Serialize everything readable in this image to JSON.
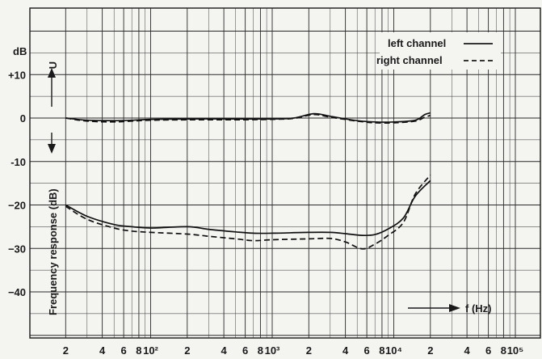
{
  "chart_data": {
    "type": "line",
    "x_scale": "log",
    "xlim": [
      10,
      100000
    ],
    "ylim": [
      -50,
      20
    ],
    "grid": true,
    "legend_placement": "top-right",
    "ylabel": "Frequency response (dB)",
    "y_unit": "dB",
    "x_arrow_label": "f (Hz)",
    "y_arrow_label": "U",
    "y_ticks": [
      {
        "v": 10,
        "t": "+10"
      },
      {
        "v": 0,
        "t": "0"
      },
      {
        "v": -10,
        "t": "-10"
      },
      {
        "v": -20,
        "t": "−20"
      },
      {
        "v": -30,
        "t": "−30"
      },
      {
        "v": -40,
        "t": "−40"
      }
    ],
    "x_ticks": [
      {
        "v": 20,
        "t": "2"
      },
      {
        "v": 40,
        "t": "4"
      },
      {
        "v": 60,
        "t": "6"
      },
      {
        "v": 80,
        "t": "8"
      },
      {
        "v": 100,
        "t": "10²"
      },
      {
        "v": 200,
        "t": "2"
      },
      {
        "v": 400,
        "t": "4"
      },
      {
        "v": 600,
        "t": "6"
      },
      {
        "v": 800,
        "t": "8"
      },
      {
        "v": 1000,
        "t": "10³"
      },
      {
        "v": 2000,
        "t": "2"
      },
      {
        "v": 4000,
        "t": "4"
      },
      {
        "v": 6000,
        "t": "6"
      },
      {
        "v": 8000,
        "t": "8"
      },
      {
        "v": 10000,
        "t": "10⁴"
      },
      {
        "v": 20000,
        "t": "2"
      },
      {
        "v": 40000,
        "t": "4"
      },
      {
        "v": 60000,
        "t": "6"
      },
      {
        "v": 80000,
        "t": "8"
      },
      {
        "v": 100000,
        "t": "10⁵"
      }
    ],
    "series": [
      {
        "name": "left channel",
        "style": "solid",
        "x": [
          20,
          30,
          50,
          70,
          100,
          200,
          500,
          1000,
          1500,
          2200,
          3000,
          5000,
          7000,
          10000,
          15000,
          18000,
          20000
        ],
        "y": [
          0,
          -0.5,
          -0.6,
          -0.5,
          -0.3,
          -0.2,
          -0.2,
          -0.2,
          0,
          1.0,
          0.4,
          -0.6,
          -0.9,
          -0.9,
          -0.5,
          0.8,
          1.2
        ]
      },
      {
        "name": "right channel",
        "style": "dashed",
        "x": [
          20,
          30,
          50,
          70,
          100,
          200,
          500,
          1000,
          1500,
          2200,
          3000,
          5000,
          7000,
          10000,
          15000,
          18000,
          20000
        ],
        "y": [
          0,
          -0.7,
          -0.9,
          -0.7,
          -0.5,
          -0.4,
          -0.4,
          -0.3,
          -0.1,
          0.8,
          0.2,
          -0.7,
          -1.1,
          -1.1,
          -0.7,
          0.2,
          0.6
        ]
      },
      {
        "name": "left channel",
        "style": "solid",
        "x": [
          20,
          30,
          50,
          70,
          100,
          200,
          300,
          500,
          700,
          1000,
          2000,
          3000,
          4000,
          5500,
          7000,
          9000,
          12000,
          15000,
          20000
        ],
        "y": [
          -20,
          -22.6,
          -24.5,
          -25,
          -25.3,
          -25,
          -25.6,
          -26.2,
          -26.5,
          -26.5,
          -26.3,
          -26.3,
          -26.6,
          -27,
          -26.8,
          -25.5,
          -23,
          -18,
          -14.4
        ]
      },
      {
        "name": "right channel",
        "style": "dashed",
        "x": [
          20,
          30,
          50,
          70,
          100,
          200,
          300,
          500,
          700,
          1000,
          2000,
          3000,
          4000,
          5500,
          7000,
          9000,
          12000,
          15000,
          20000
        ],
        "y": [
          -20.3,
          -23.3,
          -25.3,
          -26,
          -26.3,
          -26.7,
          -27.2,
          -27.8,
          -28.2,
          -28,
          -27.8,
          -27.7,
          -28.5,
          -30.1,
          -29,
          -27,
          -24,
          -17.5,
          -13.1
        ]
      }
    ]
  },
  "legend": {
    "entries": [
      {
        "label": "left channel",
        "style": "solid"
      },
      {
        "label": "right channel",
        "style": "dashed"
      }
    ]
  }
}
